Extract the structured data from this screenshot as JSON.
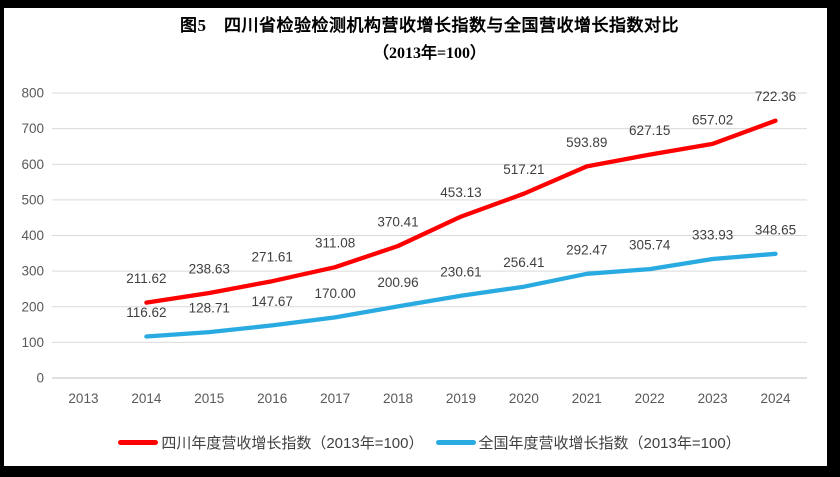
{
  "chart_data": {
    "type": "line",
    "title": "图5　四川省检验检测机构营收增长指数与全国营收增长指数对比",
    "subtitle": "（2013年=100）",
    "categories": [
      "2013",
      "2014",
      "2015",
      "2016",
      "2017",
      "2018",
      "2019",
      "2020",
      "2021",
      "2022",
      "2023",
      "2024"
    ],
    "series": [
      {
        "key": "sichuan",
        "name": "四川年度营收增长指数（2013年=100）",
        "color": "#FF0000",
        "start_category": "2014",
        "values": [
          211.62,
          238.63,
          271.61,
          311.08,
          370.41,
          453.13,
          517.21,
          593.89,
          627.15,
          657.02,
          722.36
        ],
        "labels": [
          "211.62",
          "238.63",
          "271.61",
          "311.08",
          "370.41",
          "453.13",
          "517.21",
          "593.89",
          "627.15",
          "657.02",
          "722.36"
        ]
      },
      {
        "key": "national",
        "name": "全国年度营收增长指数（2013年=100）",
        "color": "#29ABE2",
        "start_category": "2014",
        "values": [
          116.62,
          128.71,
          147.67,
          170.0,
          200.96,
          230.61,
          256.41,
          292.47,
          305.74,
          333.93,
          348.65
        ],
        "labels": [
          "116.62",
          "128.71",
          "147.67",
          "170.00",
          "200.96",
          "230.61",
          "256.41",
          "292.47",
          "305.74",
          "333.93",
          "348.65"
        ]
      }
    ],
    "xlabel": "",
    "ylabel": "",
    "ylim": [
      0,
      800
    ],
    "yticks": [
      "0",
      "100",
      "200",
      "300",
      "400",
      "500",
      "600",
      "700",
      "800"
    ],
    "grid": true,
    "legend_position": "bottom",
    "colors": {
      "gridline": "#D9D9D9",
      "baseline": "#BFBFBF",
      "axis_text": "#595959",
      "data_label_text": "#404040",
      "frame_border": "#000000"
    }
  }
}
